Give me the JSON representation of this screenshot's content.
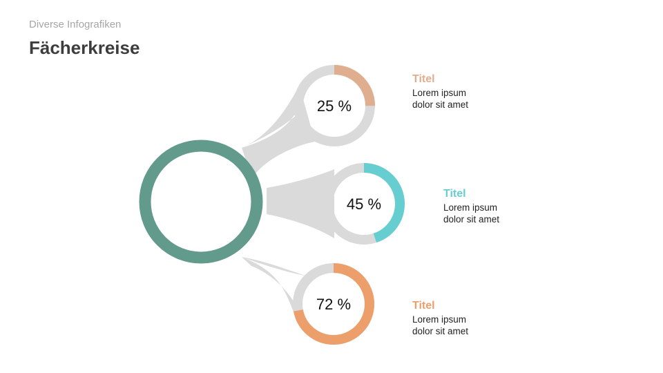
{
  "header": {
    "subtitle": "Diverse Infografiken",
    "title": "Fächerkreise"
  },
  "hub": {
    "color": "#629a8c"
  },
  "ring_track_color": "#dadada",
  "connector_color": "#dadada",
  "items": [
    {
      "percent": 25,
      "percent_label": "25 %",
      "color": "#dfae8e",
      "title": "Titel",
      "text_line1": "Lorem ipsum",
      "text_line2": "dolor sit amet"
    },
    {
      "percent": 45,
      "percent_label": "45 %",
      "color": "#66cdd0",
      "title": "Titel",
      "text_line1": "Lorem ipsum",
      "text_line2": "dolor sit amet"
    },
    {
      "percent": 72,
      "percent_label": "72 %",
      "color": "#ec9f6b",
      "title": "Titel",
      "text_line1": "Lorem ipsum",
      "text_line2": "dolor sit amet"
    }
  ]
}
